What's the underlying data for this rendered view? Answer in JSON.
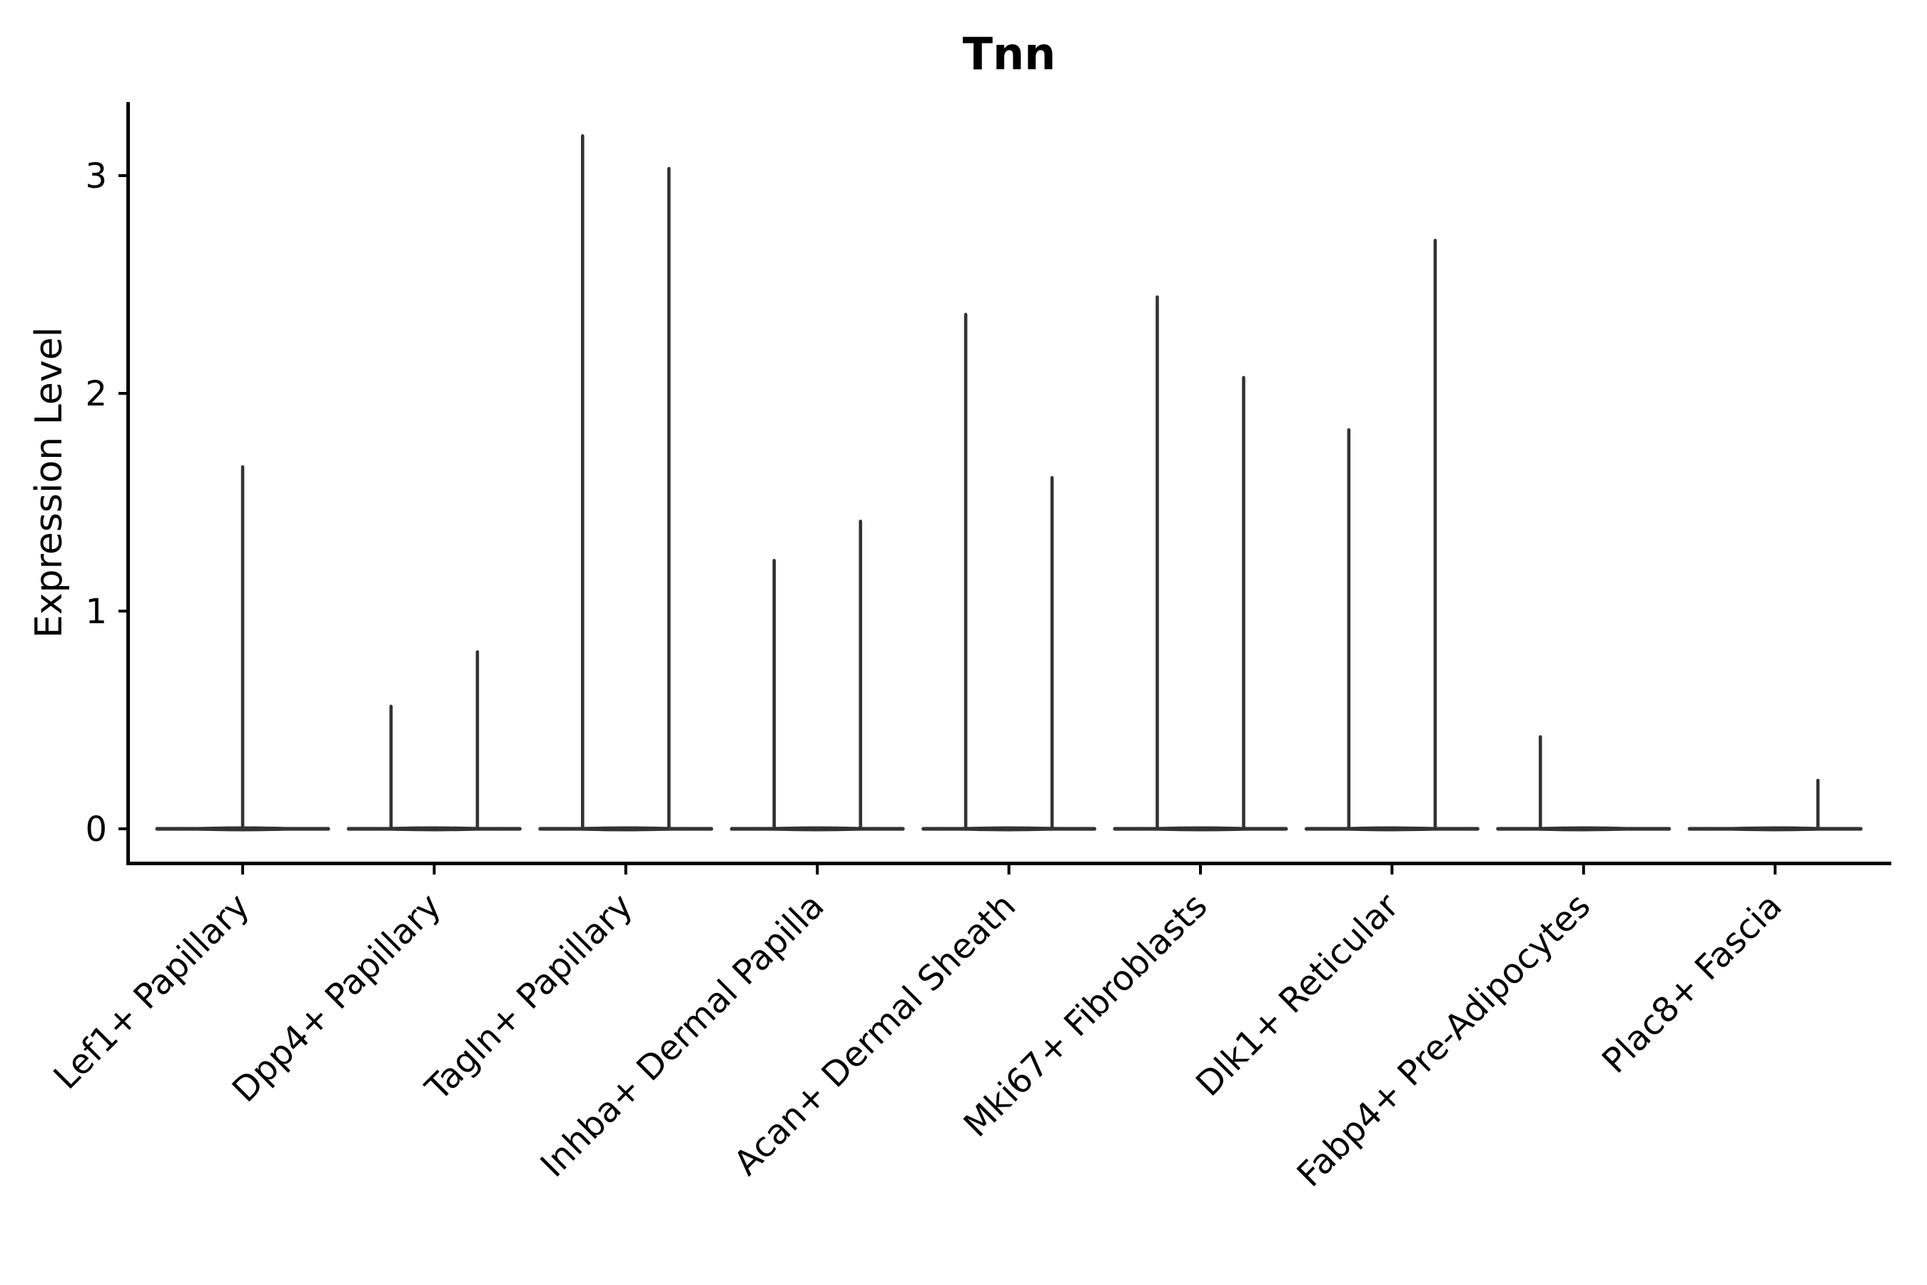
{
  "chart_data": {
    "type": "violin",
    "title": "Tnn",
    "xlabel": "",
    "ylabel": "Expression Level",
    "yticks": [
      0,
      1,
      2,
      3
    ],
    "ylim": [
      -0.16,
      3.34
    ],
    "grid": false,
    "legend": "none",
    "categories": [
      "Lef1+ Papillary",
      "Dpp4+ Papillary",
      "Tagln+ Papillary",
      "Inhba+ Dermal Papilla",
      "Acan+ Dermal Sheath",
      "Mki67+ Fibroblasts",
      "Dlk1+ Reticular",
      "Fabp4+ Pre-Adipocytes",
      "Plac8+ Fascia"
    ],
    "violins": [
      {
        "category": "Lef1+ Papillary",
        "zero_band": true,
        "spikes": [
          {
            "offset": 0,
            "max": 1.67
          }
        ]
      },
      {
        "category": "Dpp4+ Papillary",
        "zero_band": true,
        "spikes": [
          {
            "offset": -60.5,
            "max": 0.57
          },
          {
            "offset": 60.5,
            "max": 0.82
          }
        ]
      },
      {
        "category": "Tagln+ Papillary",
        "zero_band": true,
        "spikes": [
          {
            "offset": -60.5,
            "max": 3.19
          },
          {
            "offset": 60.5,
            "max": 3.04
          }
        ]
      },
      {
        "category": "Inhba+ Dermal Papilla",
        "zero_band": true,
        "spikes": [
          {
            "offset": -60.5,
            "max": 1.24
          },
          {
            "offset": 60.5,
            "max": 1.42
          }
        ]
      },
      {
        "category": "Acan+ Dermal Sheath",
        "zero_band": true,
        "spikes": [
          {
            "offset": -60.5,
            "max": 2.37
          },
          {
            "offset": 60.5,
            "max": 1.62
          }
        ]
      },
      {
        "category": "Mki67+ Fibroblasts",
        "zero_band": true,
        "spikes": [
          {
            "offset": -60.5,
            "max": 2.45
          },
          {
            "offset": 60.5,
            "max": 2.08
          }
        ]
      },
      {
        "category": "Dlk1+ Reticular",
        "zero_band": true,
        "spikes": [
          {
            "offset": -60.5,
            "max": 1.84
          },
          {
            "offset": 60.5,
            "max": 2.71
          }
        ]
      },
      {
        "category": "Fabp4+ Pre-Adipocytes",
        "zero_band": true,
        "spikes": [
          {
            "offset": -60.5,
            "max": 0.43
          }
        ]
      },
      {
        "category": "Plac8+ Fascia",
        "zero_band": true,
        "spikes": [
          {
            "offset": 60,
            "max": 0.23
          }
        ]
      }
    ],
    "colors": {
      "violin": "#333333",
      "axis": "#000000",
      "text": "#000000",
      "background": "#ffffff"
    }
  }
}
